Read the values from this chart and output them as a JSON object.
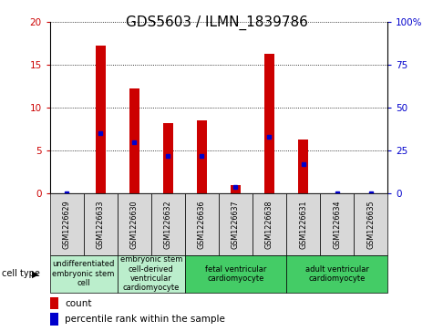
{
  "title": "GDS5603 / ILMN_1839786",
  "samples": [
    "GSM1226629",
    "GSM1226633",
    "GSM1226630",
    "GSM1226632",
    "GSM1226636",
    "GSM1226637",
    "GSM1226638",
    "GSM1226631",
    "GSM1226634",
    "GSM1226635"
  ],
  "counts": [
    0,
    17.2,
    12.2,
    8.2,
    8.5,
    1.0,
    16.2,
    6.3,
    0,
    0
  ],
  "percentiles": [
    0,
    35,
    30,
    22,
    22,
    4,
    33,
    17,
    0,
    0
  ],
  "ylim_left": [
    0,
    20
  ],
  "ylim_right": [
    0,
    100
  ],
  "yticks_left": [
    0,
    5,
    10,
    15,
    20
  ],
  "yticks_right": [
    0,
    25,
    50,
    75,
    100
  ],
  "cell_type_groups": [
    {
      "label": "undifferentiated\nembryonic stem\ncell",
      "indices": [
        0,
        1
      ],
      "color": "#bbeecc"
    },
    {
      "label": "embryonic stem\ncell-derived\nventricular\ncardiomyocyte",
      "indices": [
        2,
        3
      ],
      "color": "#bbeecc"
    },
    {
      "label": "fetal ventricular\ncardiomyocyte",
      "indices": [
        4,
        5,
        6
      ],
      "color": "#44cc66"
    },
    {
      "label": "adult ventricular\ncardiomyocyte",
      "indices": [
        7,
        8,
        9
      ],
      "color": "#44cc66"
    }
  ],
  "bar_color": "#cc0000",
  "percentile_color": "#0000cc",
  "sample_bg_color": "#d8d8d8",
  "plot_bg": "#ffffff",
  "title_fontsize": 11,
  "tick_label_fontsize": 7.5,
  "sample_label_fontsize": 5.8,
  "cell_type_fontsize": 6.0,
  "legend_fontsize": 7.5
}
